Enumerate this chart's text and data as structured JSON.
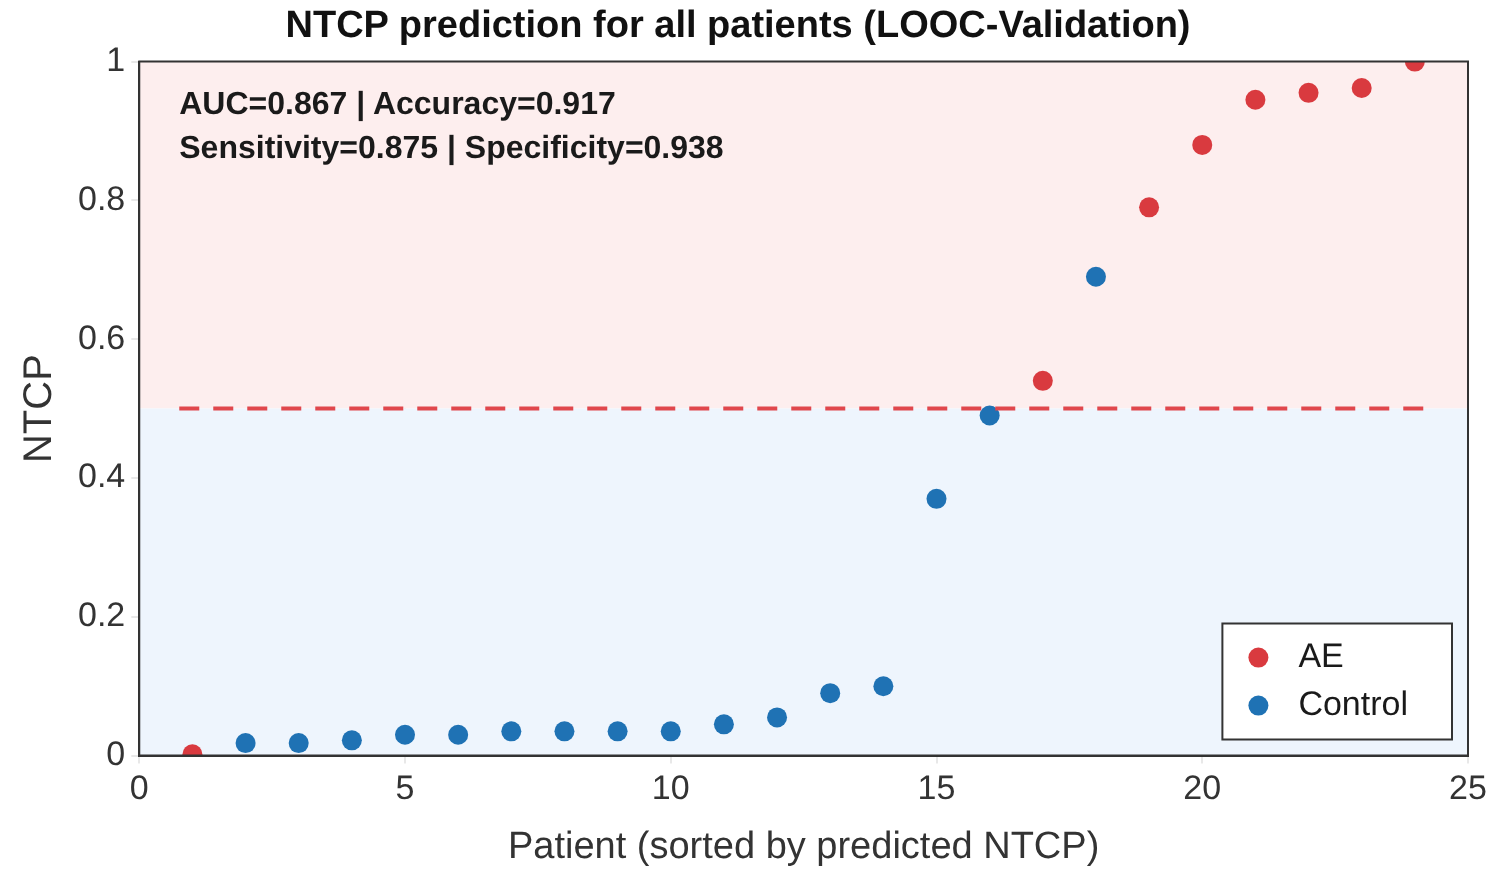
{
  "chart_data": {
    "type": "scatter",
    "title": "NTCP prediction for all patients (LOOC-Validation)",
    "xlabel": "Patient (sorted by predicted NTCP)",
    "ylabel": "NTCP",
    "annotations": [
      "AUC=0.867 | Accuracy=0.917",
      "Sensitivity=0.875 | Specificity=0.938"
    ],
    "series": [
      {
        "name": "AE",
        "color": "#d93a3f",
        "x": [
          1,
          17,
          19,
          20,
          21,
          22,
          23,
          24
        ],
        "values": [
          0.002,
          0.54,
          0.79,
          0.88,
          0.945,
          0.955,
          0.962,
          1.0
        ]
      },
      {
        "name": "Control",
        "color": "#1f72b4",
        "x": [
          2,
          3,
          4,
          5,
          6,
          7,
          8,
          9,
          10,
          11,
          12,
          13,
          14,
          15,
          16,
          18
        ],
        "values": [
          0.018,
          0.018,
          0.022,
          0.03,
          0.03,
          0.035,
          0.035,
          0.035,
          0.035,
          0.045,
          0.055,
          0.09,
          0.1,
          0.37,
          0.49,
          0.69
        ]
      }
    ],
    "ref_lines": [
      {
        "axis": "y",
        "value": 0.5,
        "color": "#e0474c",
        "line_style": "dashed"
      }
    ],
    "bands": [
      {
        "axis": "y",
        "from": 0.5,
        "to": 1,
        "color": "#fdeeee"
      },
      {
        "axis": "y",
        "from": 0,
        "to": 0.5,
        "color": "#eef5fd"
      }
    ],
    "xlim": [
      0,
      25
    ],
    "xticks": [
      0,
      5,
      10,
      15,
      20,
      25
    ],
    "ylim": [
      0,
      1
    ],
    "yticks": [
      0,
      0.2,
      0.4,
      0.6,
      0.8,
      1
    ],
    "grid": true,
    "legend": "bottom right",
    "marker": "circle"
  }
}
